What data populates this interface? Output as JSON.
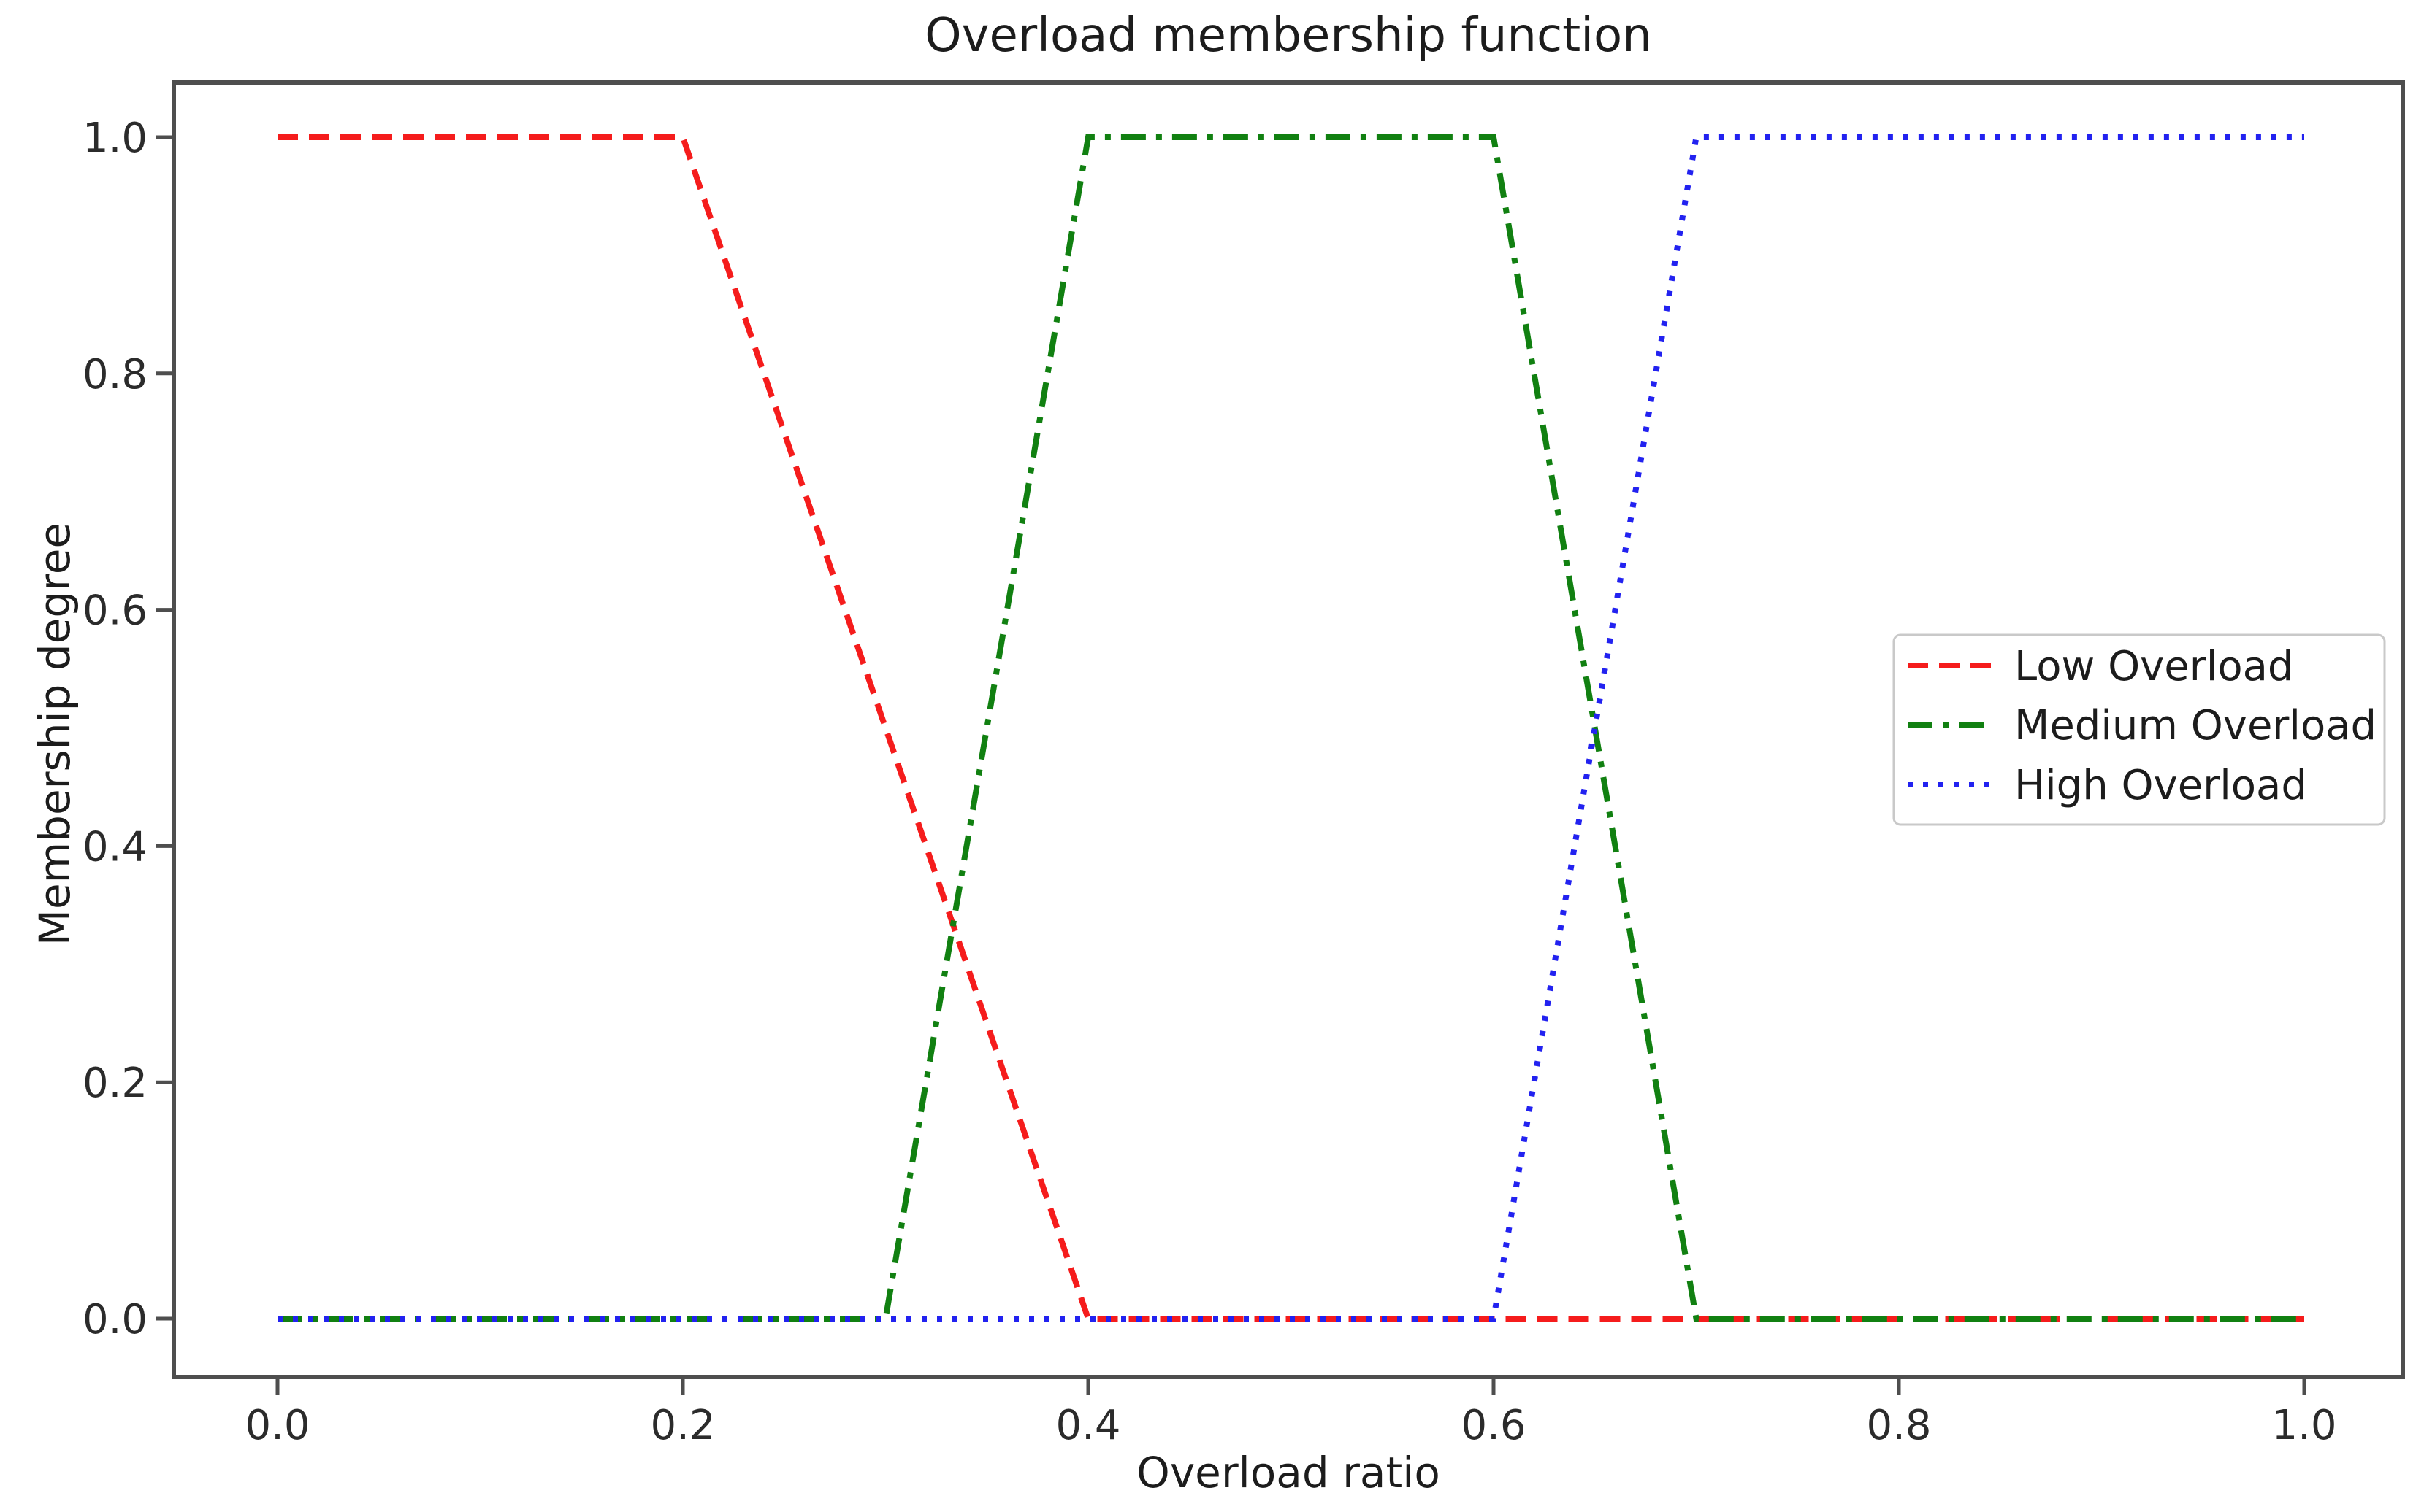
{
  "figure": {
    "type": "matplotlib-plot"
  },
  "chart_data": {
    "type": "line",
    "title": "Overload membership function",
    "xlabel": "Overload ratio",
    "ylabel": "Membership degree",
    "xlim": [
      -0.05,
      1.05
    ],
    "ylim": [
      -0.05,
      1.05
    ],
    "grid": false,
    "background": "#ffffff",
    "xtick_labels": [
      "0.0",
      "0.2",
      "0.4",
      "0.6",
      "0.8",
      "1.0"
    ],
    "ytick_labels": [
      "0.0",
      "0.2",
      "0.4",
      "0.6",
      "0.8",
      "1.0"
    ],
    "xtick_values": [
      0.0,
      0.2,
      0.4,
      0.6,
      0.8,
      1.0
    ],
    "ytick_values": [
      0.0,
      0.2,
      0.4,
      0.6,
      0.8,
      1.0
    ],
    "legend": {
      "position": "right-center",
      "entries": [
        "Low Overload",
        "Medium Overload",
        "High Overload"
      ]
    },
    "series": [
      {
        "name": "Low Overload",
        "color": "#f51c1c",
        "linestyle": "dashed",
        "points": [
          [
            0.0,
            1.0
          ],
          [
            0.2,
            1.0
          ],
          [
            0.4,
            0.0
          ],
          [
            1.0,
            0.0
          ]
        ]
      },
      {
        "name": "Medium Overload",
        "color": "#118011",
        "linestyle": "dashdot",
        "points": [
          [
            0.0,
            0.0
          ],
          [
            0.3,
            0.0
          ],
          [
            0.4,
            1.0
          ],
          [
            0.6,
            1.0
          ],
          [
            0.7,
            0.0
          ],
          [
            1.0,
            0.0
          ]
        ]
      },
      {
        "name": "High Overload",
        "color": "#2222f0",
        "linestyle": "dotted",
        "points": [
          [
            0.0,
            0.0
          ],
          [
            0.6,
            0.0
          ],
          [
            0.7,
            1.0
          ],
          [
            1.0,
            1.0
          ]
        ]
      }
    ]
  }
}
